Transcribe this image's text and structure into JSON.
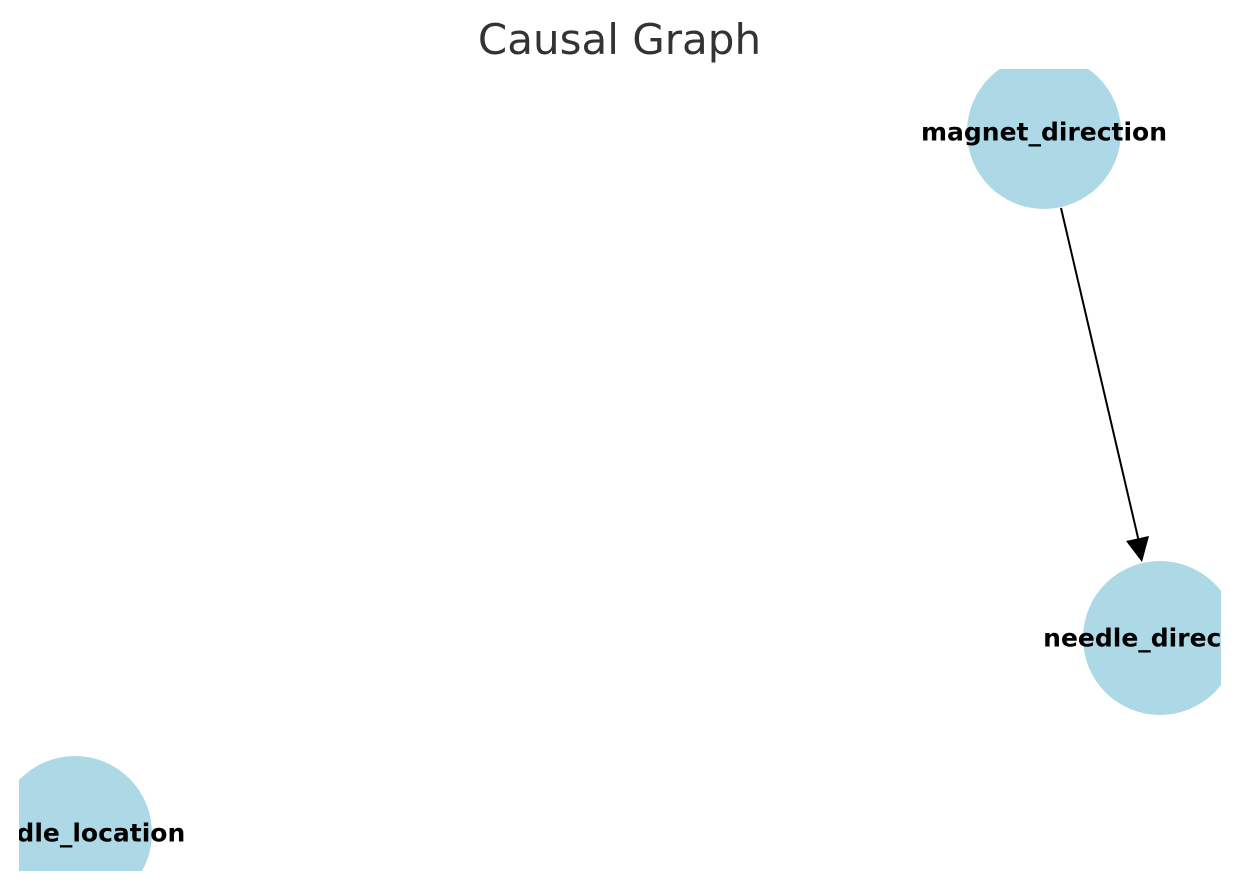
{
  "title": "Causal Graph",
  "node_color": "#add8e6",
  "edge_color": "#000000",
  "title_color": "#333333",
  "nodes": [
    {
      "id": "magnet_direction",
      "label": "magnet_direction"
    },
    {
      "id": "needle_direction",
      "label": "needle_direction"
    },
    {
      "id": "needle_location",
      "label": "needle_location"
    }
  ],
  "edges": [
    {
      "from": "magnet_direction",
      "to": "needle_direction"
    }
  ]
}
